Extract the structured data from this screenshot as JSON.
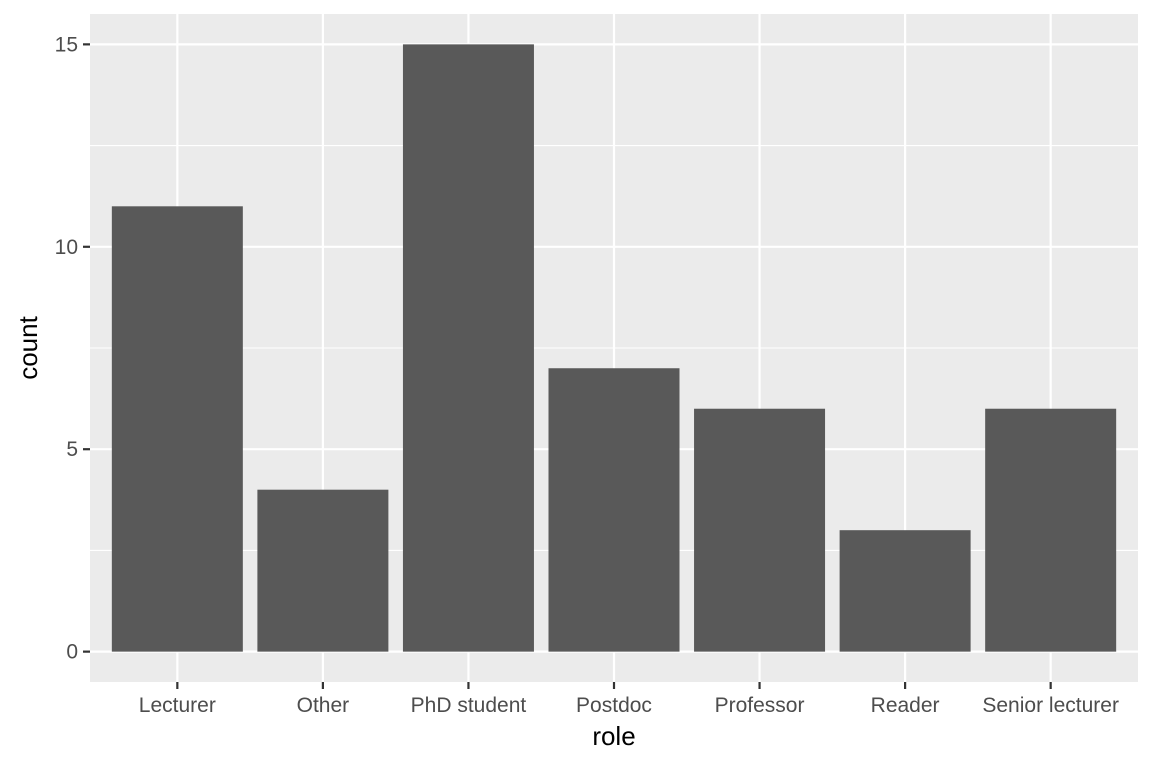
{
  "chart_data": {
    "type": "bar",
    "categories": [
      "Lecturer",
      "Other",
      "PhD student",
      "Postdoc",
      "Professor",
      "Reader",
      "Senior lecturer"
    ],
    "values": [
      11,
      4,
      15,
      7,
      6,
      3,
      6
    ],
    "xlabel": "role",
    "ylabel": "count",
    "yticks": [
      0,
      5,
      10,
      15
    ],
    "ylim": [
      -0.75,
      15.75
    ],
    "grid": true,
    "colors": {
      "panel": "#ebebeb",
      "grid": "#ffffff",
      "bar": "#595959",
      "tick": "#333333"
    }
  }
}
